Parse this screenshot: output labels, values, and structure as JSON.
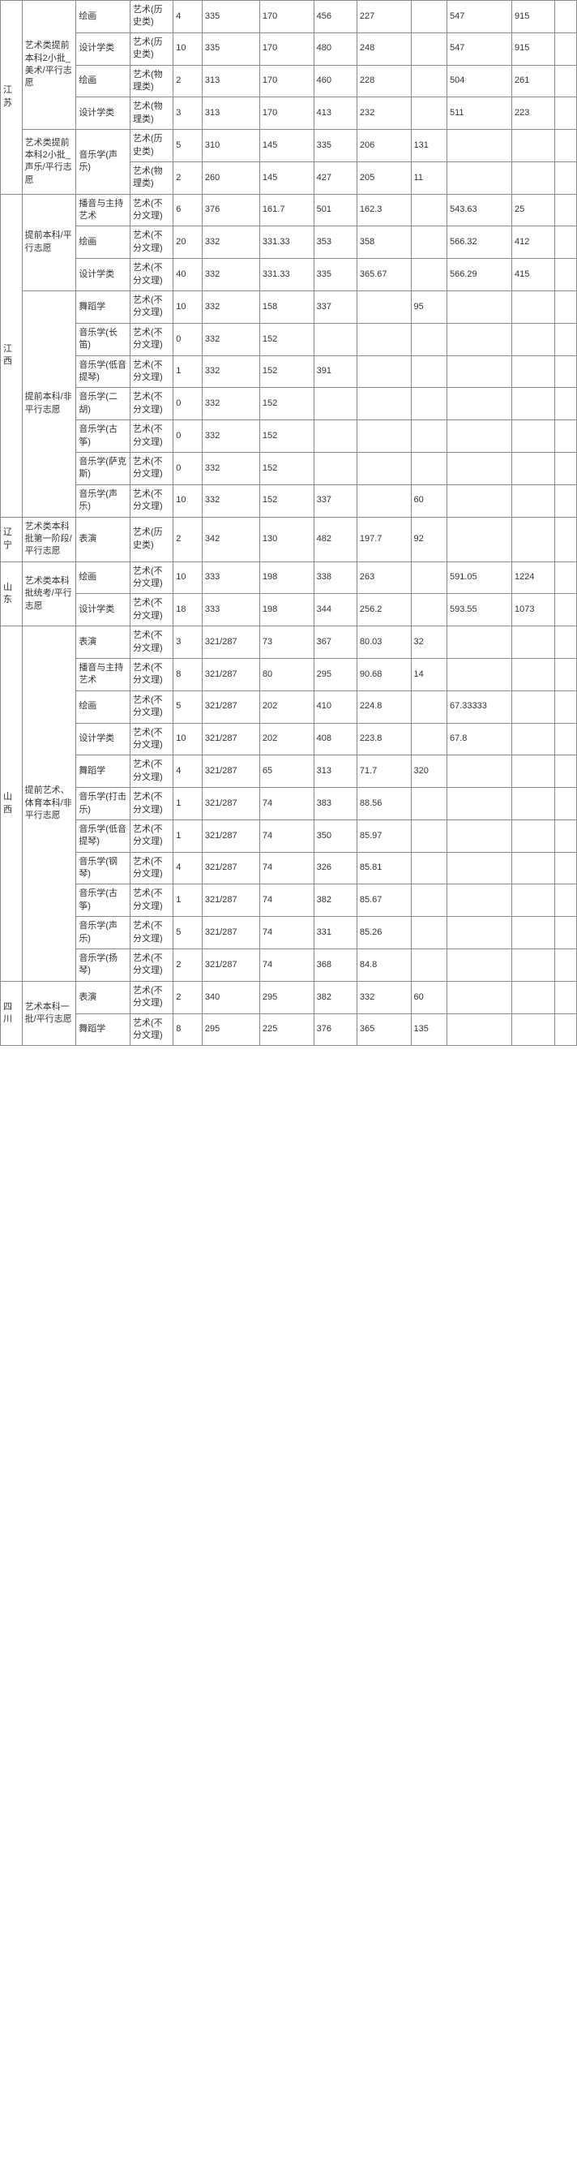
{
  "rows": [
    {
      "prov": "江苏",
      "batch": "艺术类提前本科2小批_美术/平行志愿",
      "major": "绘画",
      "type": "艺术(历史类)",
      "c4": "4",
      "c5": "335",
      "c6": "170",
      "c7": "456",
      "c8": "227",
      "c9": "",
      "c10": "547",
      "c11": "915",
      "c12": ""
    },
    {
      "prov": "",
      "batch": "",
      "major": "设计学类",
      "type": "艺术(历史类)",
      "c4": "10",
      "c5": "335",
      "c6": "170",
      "c7": "480",
      "c8": "248",
      "c9": "",
      "c10": "547",
      "c11": "915",
      "c12": ""
    },
    {
      "prov": "",
      "batch": "",
      "major": "绘画",
      "type": "艺术(物理类)",
      "c4": "2",
      "c5": "313",
      "c6": "170",
      "c7": "460",
      "c8": "228",
      "c9": "",
      "c10": "504",
      "c11": "261",
      "c12": ""
    },
    {
      "prov": "",
      "batch": "",
      "major": "设计学类",
      "type": "艺术(物理类)",
      "c4": "3",
      "c5": "313",
      "c6": "170",
      "c7": "413",
      "c8": "232",
      "c9": "",
      "c10": "511",
      "c11": "223",
      "c12": ""
    },
    {
      "prov": "",
      "batch": "艺术类提前本科2小批_声乐/平行志愿",
      "major": "音乐学(声乐)",
      "type": "艺术(历史类)",
      "c4": "5",
      "c5": "310",
      "c6": "145",
      "c7": "335",
      "c8": "206",
      "c9": "131",
      "c10": "",
      "c11": "",
      "c12": ""
    },
    {
      "prov": "",
      "batch": "",
      "major": "",
      "type": "艺术(物理类)",
      "c4": "2",
      "c5": "260",
      "c6": "145",
      "c7": "427",
      "c8": "205",
      "c9": "11",
      "c10": "",
      "c11": "",
      "c12": ""
    },
    {
      "prov": "江西",
      "batch": "提前本科/平行志愿",
      "major": "播音与主持艺术",
      "type": "艺术(不分文理)",
      "c4": "6",
      "c5": "376",
      "c6": "161.7",
      "c7": "501",
      "c8": "162.3",
      "c9": "",
      "c10": "543.63",
      "c11": "25",
      "c12": ""
    },
    {
      "prov": "",
      "batch": "",
      "major": "绘画",
      "type": "艺术(不分文理)",
      "c4": "20",
      "c5": "332",
      "c6": "331.33",
      "c7": "353",
      "c8": "358",
      "c9": "",
      "c10": "566.32",
      "c11": "412",
      "c12": ""
    },
    {
      "prov": "",
      "batch": "",
      "major": "设计学类",
      "type": "艺术(不分文理)",
      "c4": "40",
      "c5": "332",
      "c6": "331.33",
      "c7": "335",
      "c8": "365.67",
      "c9": "",
      "c10": "566.29",
      "c11": "415",
      "c12": ""
    },
    {
      "prov": "",
      "batch": "提前本科/非平行志愿",
      "major": "舞蹈学",
      "type": "艺术(不分文理)",
      "c4": "10",
      "c5": "332",
      "c6": "158",
      "c7": "337",
      "c8": "",
      "c9": "95",
      "c10": "",
      "c11": "",
      "c12": ""
    },
    {
      "prov": "",
      "batch": "",
      "major": "音乐学(长笛)",
      "type": "艺术(不分文理)",
      "c4": "0",
      "c5": "332",
      "c6": "152",
      "c7": "",
      "c8": "",
      "c9": "",
      "c10": "",
      "c11": "",
      "c12": ""
    },
    {
      "prov": "",
      "batch": "",
      "major": "音乐学(低音提琴)",
      "type": "艺术(不分文理)",
      "c4": "1",
      "c5": "332",
      "c6": "152",
      "c7": "391",
      "c8": "",
      "c9": "",
      "c10": "",
      "c11": "",
      "c12": ""
    },
    {
      "prov": "",
      "batch": "",
      "major": "音乐学(二胡)",
      "type": "艺术(不分文理)",
      "c4": "0",
      "c5": "332",
      "c6": "152",
      "c7": "",
      "c8": "",
      "c9": "",
      "c10": "",
      "c11": "",
      "c12": ""
    },
    {
      "prov": "",
      "batch": "",
      "major": "音乐学(古筝)",
      "type": "艺术(不分文理)",
      "c4": "0",
      "c5": "332",
      "c6": "152",
      "c7": "",
      "c8": "",
      "c9": "",
      "c10": "",
      "c11": "",
      "c12": ""
    },
    {
      "prov": "",
      "batch": "",
      "major": "音乐学(萨克斯)",
      "type": "艺术(不分文理)",
      "c4": "0",
      "c5": "332",
      "c6": "152",
      "c7": "",
      "c8": "",
      "c9": "",
      "c10": "",
      "c11": "",
      "c12": ""
    },
    {
      "prov": "",
      "batch": "",
      "major": "音乐学(声乐)",
      "type": "艺术(不分文理)",
      "c4": "10",
      "c5": "332",
      "c6": "152",
      "c7": "337",
      "c8": "",
      "c9": "60",
      "c10": "",
      "c11": "",
      "c12": ""
    },
    {
      "prov": "辽宁",
      "batch": "艺术类本科批第一阶段/平行志愿",
      "major": "表演",
      "type": "艺术(历史类)",
      "c4": "2",
      "c5": "342",
      "c6": "130",
      "c7": "482",
      "c8": "197.7",
      "c9": "92",
      "c10": "",
      "c11": "",
      "c12": ""
    },
    {
      "prov": "山东",
      "batch": "艺术类本科批统考/平行志愿",
      "major": "绘画",
      "type": "艺术(不分文理)",
      "c4": "10",
      "c5": "333",
      "c6": "198",
      "c7": "338",
      "c8": "263",
      "c9": "",
      "c10": "591.05",
      "c11": "1224",
      "c12": ""
    },
    {
      "prov": "",
      "batch": "",
      "major": "设计学类",
      "type": "艺术(不分文理)",
      "c4": "18",
      "c5": "333",
      "c6": "198",
      "c7": "344",
      "c8": "256.2",
      "c9": "",
      "c10": "593.55",
      "c11": "1073",
      "c12": ""
    },
    {
      "prov": "山西",
      "batch": "提前艺术、体育本科/非平行志愿",
      "major": "表演",
      "type": "艺术(不分文理)",
      "c4": "3",
      "c5": "321/287",
      "c6": "73",
      "c7": "367",
      "c8": "80.03",
      "c9": "32",
      "c10": "",
      "c11": "",
      "c12": ""
    },
    {
      "prov": "",
      "batch": "",
      "major": "播音与主持艺术",
      "type": "艺术(不分文理)",
      "c4": "8",
      "c5": "321/287",
      "c6": "80",
      "c7": "295",
      "c8": "90.68",
      "c9": "14",
      "c10": "",
      "c11": "",
      "c12": ""
    },
    {
      "prov": "",
      "batch": "",
      "major": "绘画",
      "type": "艺术(不分文理)",
      "c4": "5",
      "c5": "321/287",
      "c6": "202",
      "c7": "410",
      "c8": "224.8",
      "c9": "",
      "c10": "67.33333",
      "c11": "",
      "c12": ""
    },
    {
      "prov": "",
      "batch": "",
      "major": "设计学类",
      "type": "艺术(不分文理)",
      "c4": "10",
      "c5": "321/287",
      "c6": "202",
      "c7": "408",
      "c8": "223.8",
      "c9": "",
      "c10": "67.8",
      "c11": "",
      "c12": ""
    },
    {
      "prov": "",
      "batch": "",
      "major": "舞蹈学",
      "type": "艺术(不分文理)",
      "c4": "4",
      "c5": "321/287",
      "c6": "65",
      "c7": "313",
      "c8": "71.7",
      "c9": "320",
      "c10": "",
      "c11": "",
      "c12": ""
    },
    {
      "prov": "",
      "batch": "",
      "major": "音乐学(打击乐)",
      "type": "艺术(不分文理)",
      "c4": "1",
      "c5": "321/287",
      "c6": "74",
      "c7": "383",
      "c8": "88.56",
      "c9": "",
      "c10": "",
      "c11": "",
      "c12": ""
    },
    {
      "prov": "",
      "batch": "",
      "major": "音乐学(低音提琴)",
      "type": "艺术(不分文理)",
      "c4": "1",
      "c5": "321/287",
      "c6": "74",
      "c7": "350",
      "c8": "85.97",
      "c9": "",
      "c10": "",
      "c11": "",
      "c12": ""
    },
    {
      "prov": "",
      "batch": "",
      "major": "音乐学(钢琴)",
      "type": "艺术(不分文理)",
      "c4": "4",
      "c5": "321/287",
      "c6": "74",
      "c7": "326",
      "c8": "85.81",
      "c9": "",
      "c10": "",
      "c11": "",
      "c12": ""
    },
    {
      "prov": "",
      "batch": "",
      "major": "音乐学(古筝)",
      "type": "艺术(不分文理)",
      "c4": "1",
      "c5": "321/287",
      "c6": "74",
      "c7": "382",
      "c8": "85.67",
      "c9": "",
      "c10": "",
      "c11": "",
      "c12": ""
    },
    {
      "prov": "",
      "batch": "",
      "major": "音乐学(声乐)",
      "type": "艺术(不分文理)",
      "c4": "5",
      "c5": "321/287",
      "c6": "74",
      "c7": "331",
      "c8": "85.26",
      "c9": "",
      "c10": "",
      "c11": "",
      "c12": ""
    },
    {
      "prov": "",
      "batch": "",
      "major": "音乐学(扬琴)",
      "type": "艺术(不分文理)",
      "c4": "2",
      "c5": "321/287",
      "c6": "74",
      "c7": "368",
      "c8": "84.8",
      "c9": "",
      "c10": "",
      "c11": "",
      "c12": ""
    },
    {
      "prov": "四川",
      "batch": "艺术本科一批/平行志愿",
      "major": "表演",
      "type": "艺术(不分文理)",
      "c4": "2",
      "c5": "340",
      "c6": "295",
      "c7": "382",
      "c8": "332",
      "c9": "60",
      "c10": "",
      "c11": "",
      "c12": ""
    },
    {
      "prov": "",
      "batch": "",
      "major": "舞蹈学",
      "type": "艺术(不分文理)",
      "c4": "8",
      "c5": "295",
      "c6": "225",
      "c7": "376",
      "c8": "365",
      "c9": "135",
      "c10": "",
      "c11": "",
      "c12": ""
    }
  ],
  "spans": {
    "prov": [
      {
        "start": 0,
        "span": 6
      },
      {
        "start": 6,
        "span": 10
      },
      {
        "start": 16,
        "span": 1
      },
      {
        "start": 17,
        "span": 2
      },
      {
        "start": 19,
        "span": 11
      },
      {
        "start": 30,
        "span": 2
      }
    ],
    "batch": [
      {
        "start": 0,
        "span": 4
      },
      {
        "start": 4,
        "span": 2
      },
      {
        "start": 6,
        "span": 3
      },
      {
        "start": 9,
        "span": 7
      },
      {
        "start": 16,
        "span": 1
      },
      {
        "start": 17,
        "span": 2
      },
      {
        "start": 19,
        "span": 11
      },
      {
        "start": 30,
        "span": 2
      }
    ],
    "major": [
      {
        "start": 4,
        "span": 2
      }
    ]
  }
}
